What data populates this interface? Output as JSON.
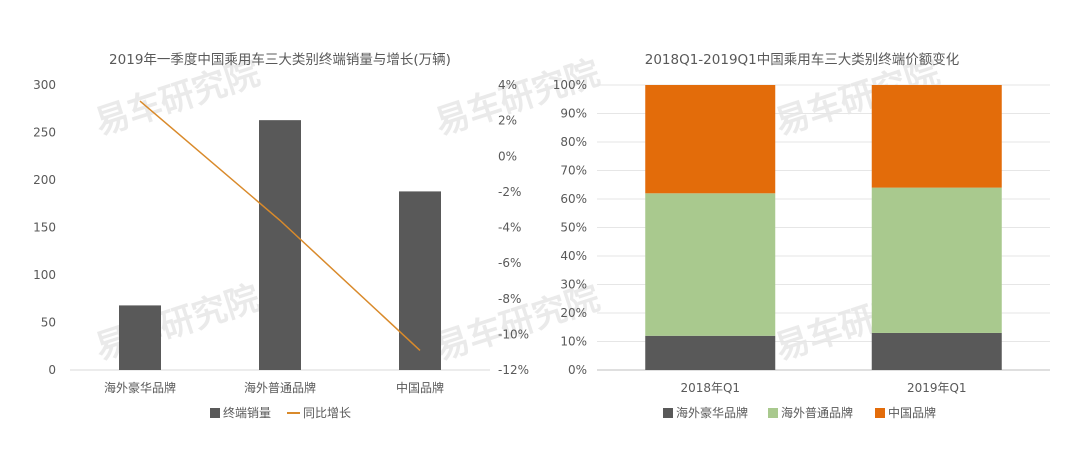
{
  "watermark": "易车研究院",
  "chart_data": [
    {
      "type": "bar",
      "title": "2019年一季度中国乘用车三大类别终端销量与增长(万辆)",
      "categories": [
        "海外豪华品牌",
        "海外普通品牌",
        "中国品牌"
      ],
      "series": [
        {
          "name": "终端销量",
          "type": "bar",
          "axis": "left",
          "values": [
            68,
            263,
            188
          ],
          "color": "#595959"
        },
        {
          "name": "同比增长",
          "type": "line",
          "axis": "right",
          "values": [
            3.1,
            -3.6,
            -10.9
          ],
          "color": "#d98a2b"
        }
      ],
      "ylim": [
        0,
        300
      ],
      "yticks": [
        "0",
        "50",
        "100",
        "150",
        "200",
        "250",
        "300"
      ],
      "y2lim": [
        -12,
        4
      ],
      "y2ticks": [
        "-12%",
        "-10%",
        "-8%",
        "-6%",
        "-4%",
        "-2%",
        "0%",
        "2%",
        "4%"
      ],
      "legend_position": "bottom"
    },
    {
      "type": "bar",
      "stacked": true,
      "title": "2018Q1-2019Q1中国乘用车三大类别终端价额变化",
      "categories": [
        "2018年Q1",
        "2019年Q1"
      ],
      "series": [
        {
          "name": "海外豪华品牌",
          "values": [
            12,
            13
          ],
          "color": "#595959"
        },
        {
          "name": "海外普通品牌",
          "values": [
            50,
            51
          ],
          "color": "#a9c98e"
        },
        {
          "name": "中国品牌",
          "values": [
            38,
            36
          ],
          "color": "#e36c0a"
        }
      ],
      "ylim": [
        0,
        100
      ],
      "yticks": [
        "0%",
        "10%",
        "20%",
        "30%",
        "40%",
        "50%",
        "60%",
        "70%",
        "80%",
        "90%",
        "100%"
      ],
      "grid": true,
      "legend_position": "bottom"
    }
  ]
}
